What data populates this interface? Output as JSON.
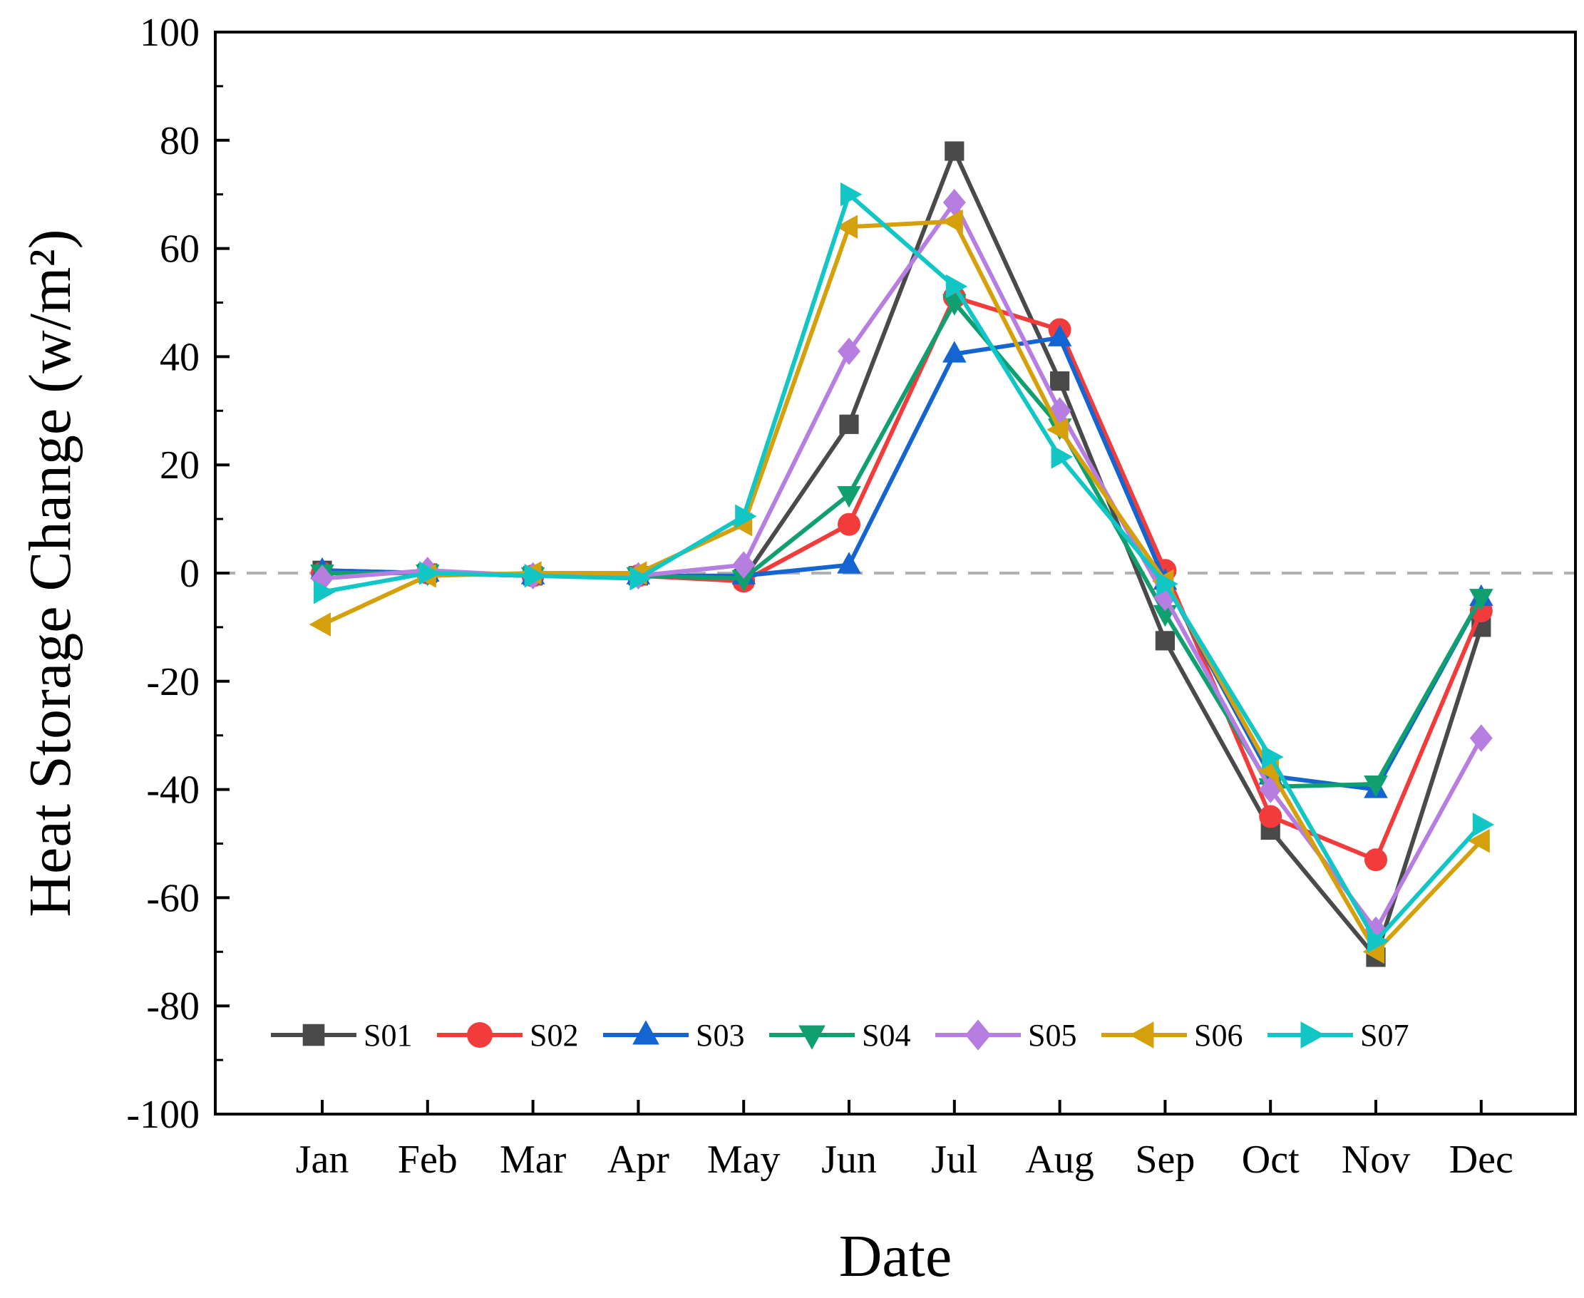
{
  "chart_data": {
    "type": "line",
    "title": "",
    "xlabel": "Date",
    "ylabel": "Heat Storage Change (w/m²)",
    "ylim": [
      -100,
      100
    ],
    "yticks": [
      -100,
      -80,
      -60,
      -40,
      -20,
      0,
      20,
      40,
      60,
      80,
      100
    ],
    "ytick_labels": [
      "-100",
      "-80",
      "-60",
      "-40",
      "-20",
      "0",
      "20",
      "40",
      "60",
      "80",
      "100"
    ],
    "categories": [
      "Jan",
      "Feb",
      "Mar",
      "Apr",
      "May",
      "Jun",
      "Jul",
      "Aug",
      "Sep",
      "Oct",
      "Nov",
      "Dec"
    ],
    "reference_line": 0,
    "legend_position": "bottom",
    "series": [
      {
        "name": "S01",
        "color": "#4a4a4a",
        "marker": "square",
        "values": [
          0.5,
          0,
          -0.5,
          -0.5,
          -1,
          27.5,
          78,
          35.5,
          -12.5,
          -47.5,
          -71,
          -10
        ]
      },
      {
        "name": "S02",
        "color": "#f23c3c",
        "marker": "circle",
        "values": [
          0,
          0,
          -0.5,
          -0.5,
          -1.5,
          9,
          51,
          45,
          0.5,
          -45,
          -53,
          -7
        ]
      },
      {
        "name": "S03",
        "color": "#1464d2",
        "marker": "triangle-up",
        "values": [
          0.5,
          0,
          -0.5,
          -0.5,
          -0.5,
          1.5,
          40.5,
          43.5,
          -1.5,
          -37.5,
          -40,
          -4.5
        ]
      },
      {
        "name": "S04",
        "color": "#10a070",
        "marker": "triangle-down",
        "values": [
          0,
          0,
          -0.5,
          -0.5,
          -1,
          14.5,
          50,
          27,
          -7.5,
          -39.5,
          -39,
          -4.5
        ]
      },
      {
        "name": "S05",
        "color": "#b67ee0",
        "marker": "diamond",
        "values": [
          -1,
          0.5,
          -0.5,
          -0.5,
          1.5,
          41,
          68.5,
          30,
          -4.5,
          -40,
          -66,
          -30.5
        ]
      },
      {
        "name": "S06",
        "color": "#d4a00c",
        "marker": "triangle-left",
        "values": [
          -9.5,
          -0.5,
          0,
          0,
          9,
          64,
          65,
          26.5,
          -1.5,
          -36.5,
          -70,
          -49.5
        ]
      },
      {
        "name": "S07",
        "color": "#12c6c6",
        "marker": "triangle-right",
        "values": [
          -3.5,
          0,
          -0.5,
          -1,
          10.5,
          70,
          53,
          21.5,
          -2,
          -34,
          -68,
          -46.5
        ]
      }
    ]
  }
}
